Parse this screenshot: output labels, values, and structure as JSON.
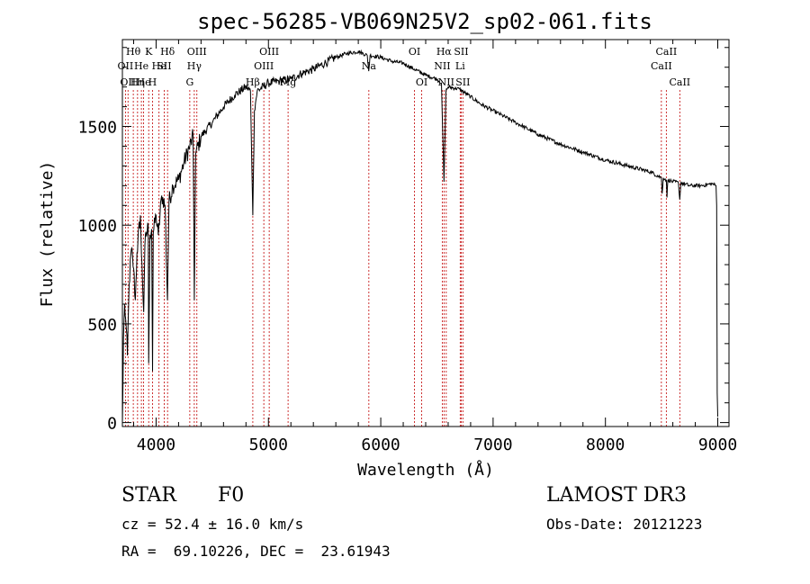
{
  "chart_data": {
    "type": "line",
    "title": "spec-56285-VB069N25V2_sp02-061.fits",
    "xlabel": "Wavelength (Å)",
    "ylabel": "Flux (relative)",
    "xlim": [
      3700,
      9100
    ],
    "ylim": [
      -20,
      1940
    ],
    "xticks": [
      4000,
      5000,
      6000,
      7000,
      8000,
      9000
    ],
    "yticks": [
      0,
      500,
      1000,
      1500
    ],
    "series": [
      {
        "name": "flux",
        "points": [
          [
            3700,
            0
          ],
          [
            3705,
            180
          ],
          [
            3710,
            430
          ],
          [
            3720,
            600
          ],
          [
            3730,
            520
          ],
          [
            3745,
            340
          ],
          [
            3760,
            700
          ],
          [
            3780,
            880
          ],
          [
            3800,
            780
          ],
          [
            3815,
            620
          ],
          [
            3830,
            860
          ],
          [
            3860,
            1050
          ],
          [
            3870,
            850
          ],
          [
            3890,
            560
          ],
          [
            3900,
            900
          ],
          [
            3930,
            1000
          ],
          [
            3934,
            300
          ],
          [
            3945,
            950
          ],
          [
            3960,
            980
          ],
          [
            3968,
            260
          ],
          [
            3975,
            960
          ],
          [
            4000,
            1050
          ],
          [
            4020,
            950
          ],
          [
            4050,
            1150
          ],
          [
            4080,
            1100
          ],
          [
            4101,
            620
          ],
          [
            4115,
            1120
          ],
          [
            4150,
            1200
          ],
          [
            4200,
            1230
          ],
          [
            4250,
            1320
          ],
          [
            4300,
            1400
          ],
          [
            4330,
            1450
          ],
          [
            4340,
            620
          ],
          [
            4352,
            1360
          ],
          [
            4400,
            1450
          ],
          [
            4500,
            1520
          ],
          [
            4600,
            1600
          ],
          [
            4700,
            1660
          ],
          [
            4800,
            1700
          ],
          [
            4840,
            1680
          ],
          [
            4861,
            1050
          ],
          [
            4875,
            1580
          ],
          [
            4900,
            1680
          ],
          [
            5000,
            1720
          ],
          [
            5100,
            1730
          ],
          [
            5200,
            1740
          ],
          [
            5300,
            1770
          ],
          [
            5400,
            1790
          ],
          [
            5500,
            1820
          ],
          [
            5600,
            1850
          ],
          [
            5700,
            1870
          ],
          [
            5800,
            1880
          ],
          [
            5880,
            1860
          ],
          [
            5893,
            1780
          ],
          [
            5905,
            1860
          ],
          [
            6000,
            1850
          ],
          [
            6100,
            1830
          ],
          [
            6200,
            1820
          ],
          [
            6300,
            1790
          ],
          [
            6400,
            1760
          ],
          [
            6500,
            1740
          ],
          [
            6540,
            1720
          ],
          [
            6563,
            1220
          ],
          [
            6580,
            1680
          ],
          [
            6600,
            1700
          ],
          [
            6700,
            1690
          ],
          [
            6800,
            1650
          ],
          [
            6900,
            1610
          ],
          [
            7000,
            1580
          ],
          [
            7200,
            1520
          ],
          [
            7400,
            1460
          ],
          [
            7600,
            1410
          ],
          [
            7800,
            1370
          ],
          [
            8000,
            1330
          ],
          [
            8200,
            1300
          ],
          [
            8400,
            1270
          ],
          [
            8498,
            1240
          ],
          [
            8505,
            1160
          ],
          [
            8515,
            1240
          ],
          [
            8542,
            1230
          ],
          [
            8548,
            1140
          ],
          [
            8556,
            1230
          ],
          [
            8600,
            1220
          ],
          [
            8650,
            1215
          ],
          [
            8662,
            1130
          ],
          [
            8672,
            1215
          ],
          [
            8750,
            1200
          ],
          [
            8850,
            1200
          ],
          [
            8950,
            1210
          ],
          [
            8985,
            1200
          ],
          [
            8990,
            1100
          ],
          [
            8995,
            150
          ],
          [
            9000,
            30
          ]
        ]
      }
    ],
    "line_markers": [
      {
        "wl": 3727,
        "label": "OII",
        "row": 2
      },
      {
        "wl": 3750,
        "label": "OII",
        "row": 3
      },
      {
        "wl": 3797,
        "label": "Hθ",
        "row": 1
      },
      {
        "wl": 3835,
        "label": "Hη",
        "row": 3
      },
      {
        "wl": 3869,
        "label": "He",
        "row": 2
      },
      {
        "wl": 3889,
        "label": "He",
        "row": 3
      },
      {
        "wl": 3934,
        "label": "K",
        "row": 1
      },
      {
        "wl": 3968,
        "label": "H",
        "row": 3
      },
      {
        "wl": 4026,
        "label": "He",
        "row": 2
      },
      {
        "wl": 4072,
        "label": "SII",
        "row": 2
      },
      {
        "wl": 4102,
        "label": "Hδ",
        "row": 1
      },
      {
        "wl": 4300,
        "label": "G",
        "row": 3
      },
      {
        "wl": 4340,
        "label": "Hγ",
        "row": 2
      },
      {
        "wl": 4363,
        "label": "OIII",
        "row": 1
      },
      {
        "wl": 4861,
        "label": "Hβ",
        "row": 3
      },
      {
        "wl": 4959,
        "label": "OIII",
        "row": 2
      },
      {
        "wl": 5007,
        "label": "OIII",
        "row": 1
      },
      {
        "wl": 5175,
        "label": "Mg",
        "row": 3
      },
      {
        "wl": 5894,
        "label": "Na",
        "row": 2
      },
      {
        "wl": 6300,
        "label": "OI",
        "row": 1
      },
      {
        "wl": 6364,
        "label": "OI",
        "row": 3
      },
      {
        "wl": 6548,
        "label": "NII",
        "row": 2
      },
      {
        "wl": 6563,
        "label": "Hα",
        "row": 1
      },
      {
        "wl": 6583,
        "label": "NII",
        "row": 3
      },
      {
        "wl": 6707,
        "label": "Li",
        "row": 2
      },
      {
        "wl": 6716,
        "label": "SII",
        "row": 1
      },
      {
        "wl": 6731,
        "label": "SII",
        "row": 3
      },
      {
        "wl": 8498,
        "label": "CaII",
        "row": 2
      },
      {
        "wl": 8542,
        "label": "CaII",
        "row": 1
      },
      {
        "wl": 8662,
        "label": "CaII",
        "row": 3
      }
    ]
  },
  "info": {
    "class": "STAR",
    "subclass": "F0",
    "survey": "LAMOST DR3",
    "cz": "cz = 52.4 ± 16.0 km/s",
    "obs_date": "Obs-Date: 20121223",
    "radec": "RA =  69.10226, DEC =  23.61943"
  }
}
